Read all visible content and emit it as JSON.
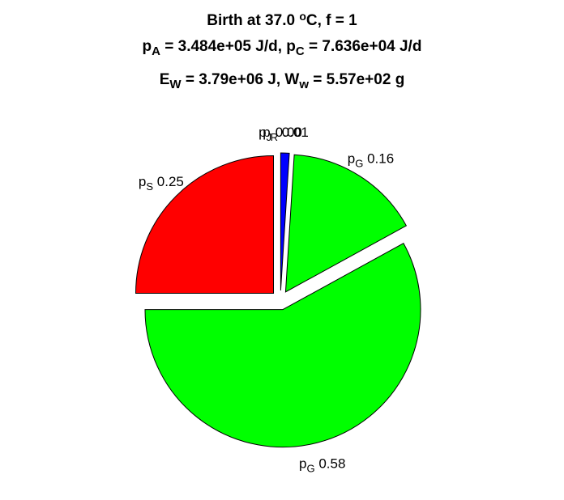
{
  "chart_data": {
    "type": "pie",
    "title_lines": [
      [
        {
          "t": "Birth at 37.0 "
        },
        {
          "t": "o",
          "sup": true
        },
        {
          "t": "C, f = 1"
        }
      ],
      [
        {
          "t": "p"
        },
        {
          "t": "A",
          "sub": true
        },
        {
          "t": " = 3.484e+05 J/d, p"
        },
        {
          "t": "C",
          "sub": true
        },
        {
          "t": " = 7.636e+04 J/d"
        }
      ],
      [
        {
          "t": "E"
        },
        {
          "t": "W",
          "sub": true
        },
        {
          "t": " = 3.79e+06 J, W"
        },
        {
          "t": "w",
          "sub": true
        },
        {
          "t": " = 5.57e+02 g"
        }
      ]
    ],
    "slices": [
      {
        "symbol": "p",
        "sub": "J",
        "value": 0.0,
        "value_label": "0.00",
        "color": "#0000ff"
      },
      {
        "symbol": "p",
        "sub": "R",
        "value": 0.01,
        "value_label": "0.01",
        "color": "#0000ff"
      },
      {
        "symbol": "p",
        "sub": "G",
        "value": 0.16,
        "value_label": "0.16",
        "color": "#00ff00"
      },
      {
        "symbol": "p",
        "sub": "G",
        "value": 0.58,
        "value_label": "0.58",
        "color": "#00ff00"
      },
      {
        "symbol": "p",
        "sub": "S",
        "value": 0.25,
        "value_label": "0.25",
        "color": "#ff0000"
      }
    ]
  }
}
